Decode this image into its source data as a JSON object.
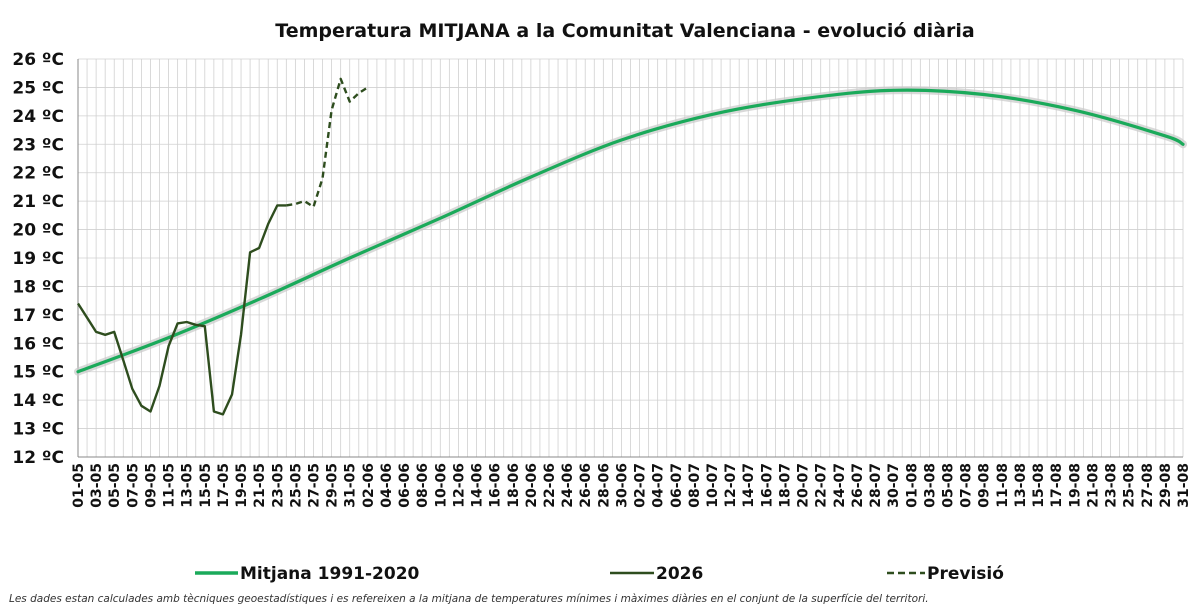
{
  "chart_data": {
    "type": "line",
    "title": "Temperatura MITJANA a la Comunitat Valenciana - evolució diària",
    "footnote": "Les dades estan calculades amb tècniques geoestadístiques i es refereixen a la mitjana de temperatures mínimes i màximes diàries en el conjunt de la superfície del territori.",
    "ylim": [
      12,
      26
    ],
    "yticks": [
      "12 ºC",
      "13 ºC",
      "14 ºC",
      "15 ºC",
      "16 ºC",
      "17 ºC",
      "18 ºC",
      "19 ºC",
      "20 ºC",
      "21 ºC",
      "22 ºC",
      "23 ºC",
      "24 ºC",
      "25 ºC",
      "26 ºC"
    ],
    "xlim": [
      "01-05",
      "31-08"
    ],
    "xticks": [
      "01-05",
      "03-05",
      "05-05",
      "07-05",
      "09-05",
      "11-05",
      "13-05",
      "15-05",
      "17-05",
      "19-05",
      "21-05",
      "23-05",
      "25-05",
      "27-05",
      "29-05",
      "31-05",
      "02-06",
      "04-06",
      "06-06",
      "08-06",
      "10-06",
      "12-06",
      "14-06",
      "16-06",
      "18-06",
      "20-06",
      "22-06",
      "24-06",
      "26-06",
      "28-06",
      "30-06",
      "02-07",
      "04-07",
      "06-07",
      "08-07",
      "10-07",
      "12-07",
      "14-07",
      "16-07",
      "18-07",
      "20-07",
      "22-07",
      "24-07",
      "26-07",
      "28-07",
      "30-07",
      "01-08",
      "03-08",
      "05-08",
      "07-08",
      "09-08",
      "11-08",
      "13-08",
      "15-08",
      "17-08",
      "19-08",
      "21-08",
      "23-08",
      "25-08",
      "27-08",
      "29-08",
      "31-08"
    ],
    "grid": true,
    "legend_position": "bottom",
    "series": [
      {
        "name": "Mitjana 1991-2020",
        "color": "#1aaa5a",
        "style": "solid",
        "points": [
          [
            "01-05",
            15.0
          ],
          [
            "11-05",
            16.2
          ],
          [
            "21-05",
            17.55
          ],
          [
            "31-05",
            19.0
          ],
          [
            "10-06",
            20.4
          ],
          [
            "20-06",
            21.85
          ],
          [
            "30-06",
            23.15
          ],
          [
            "10-07",
            24.05
          ],
          [
            "20-07",
            24.6
          ],
          [
            "30-07",
            24.9
          ],
          [
            "09-08",
            24.75
          ],
          [
            "19-08",
            24.2
          ],
          [
            "29-08",
            23.3
          ],
          [
            "31-08",
            23.0
          ]
        ]
      },
      {
        "name": "2026",
        "color": "#2e4d1e",
        "style": "solid",
        "points": [
          [
            "01-05",
            17.4
          ],
          [
            "02-05",
            16.9
          ],
          [
            "03-05",
            16.4
          ],
          [
            "04-05",
            16.3
          ],
          [
            "05-05",
            16.4
          ],
          [
            "06-05",
            15.4
          ],
          [
            "07-05",
            14.4
          ],
          [
            "08-05",
            13.8
          ],
          [
            "09-05",
            13.6
          ],
          [
            "10-05",
            14.5
          ],
          [
            "11-05",
            15.9
          ],
          [
            "12-05",
            16.7
          ],
          [
            "13-05",
            16.75
          ],
          [
            "14-05",
            16.65
          ],
          [
            "15-05",
            16.6
          ],
          [
            "16-05",
            13.6
          ],
          [
            "17-05",
            13.5
          ],
          [
            "18-05",
            14.2
          ],
          [
            "19-05",
            16.3
          ],
          [
            "20-05",
            19.2
          ],
          [
            "21-05",
            19.35
          ],
          [
            "22-05",
            20.2
          ],
          [
            "23-05",
            20.85
          ],
          [
            "24-05",
            20.85
          ]
        ]
      },
      {
        "name": "Previsió",
        "color": "#2e4d1e",
        "style": "dashed",
        "points": [
          [
            "24-05",
            20.85
          ],
          [
            "25-05",
            20.9
          ],
          [
            "26-05",
            21.0
          ],
          [
            "27-05",
            20.8
          ],
          [
            "28-05",
            21.8
          ],
          [
            "29-05",
            24.2
          ],
          [
            "30-05",
            25.3
          ],
          [
            "31-05",
            24.5
          ],
          [
            "01-06",
            24.8
          ],
          [
            "02-06",
            25.0
          ]
        ]
      }
    ]
  }
}
